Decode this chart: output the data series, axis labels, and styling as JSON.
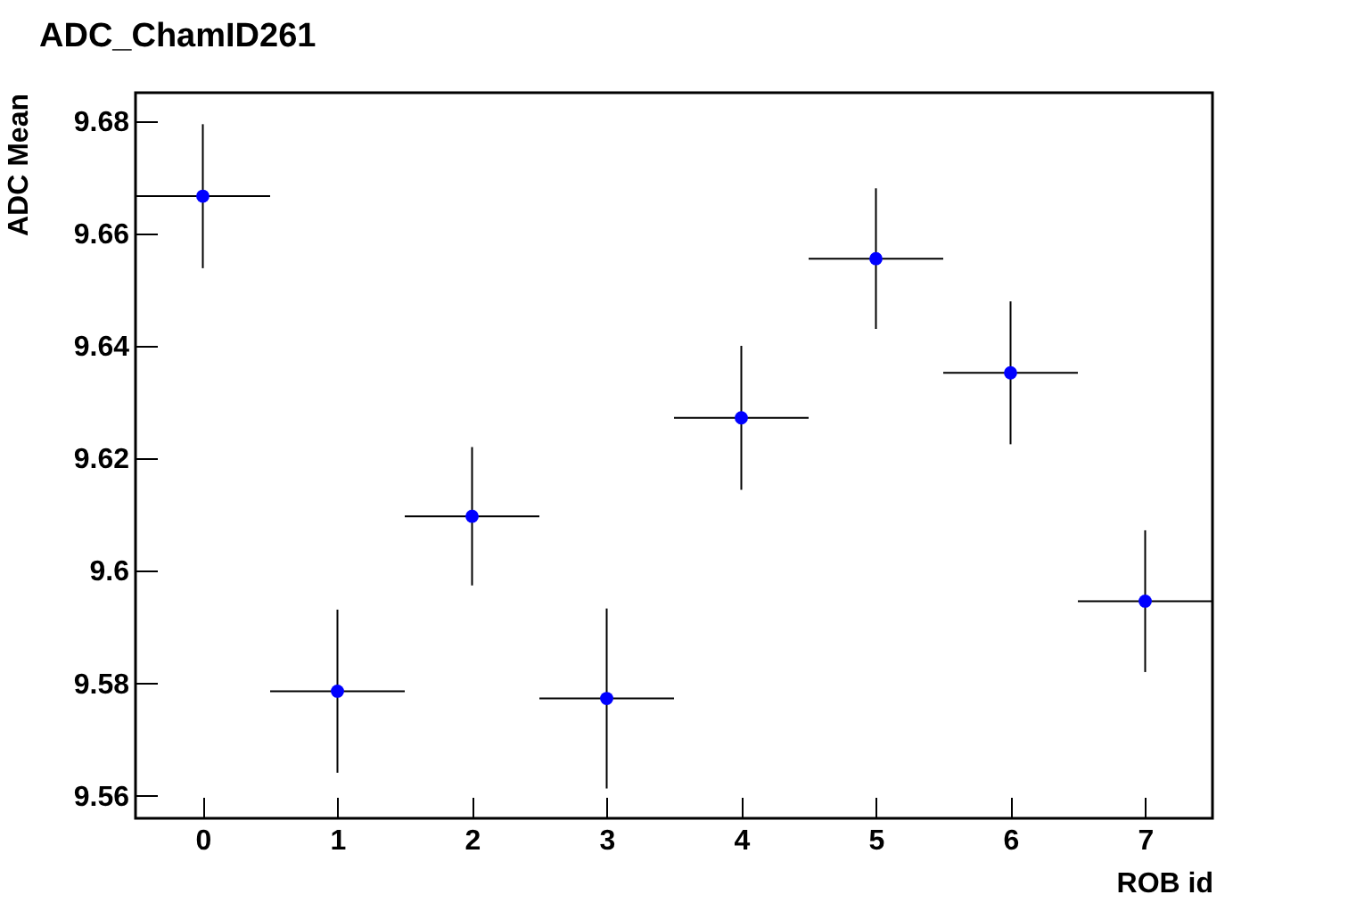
{
  "chart_data": {
    "type": "scatter",
    "title": "ADC_ChamID261",
    "xlabel": "ROB id",
    "ylabel": "ADC Mean",
    "x": [
      0,
      1,
      2,
      3,
      4,
      5,
      6,
      7
    ],
    "series": [
      {
        "color": "#0000ff",
        "values": [
          9.6666,
          9.5786,
          9.6097,
          9.5773,
          9.6272,
          9.6555,
          9.6352,
          9.5946
        ],
        "errors": [
          0.0128,
          0.0145,
          0.0123,
          0.016,
          0.0128,
          0.0125,
          0.0127,
          0.0126
        ],
        "xerrors": [
          0.5,
          0.5,
          0.5,
          0.5,
          0.5,
          0.5,
          0.5,
          0.5
        ]
      }
    ],
    "xlim": [
      -0.5,
      7.5
    ],
    "xticks": [
      0,
      1,
      2,
      3,
      4,
      5,
      6,
      7
    ],
    "ylim": [
      9.556,
      9.685
    ],
    "yticks": [
      9.56,
      9.58,
      9.6,
      9.62,
      9.64,
      9.66,
      9.68
    ],
    "grid": false,
    "legend": false,
    "marker": "circle"
  }
}
